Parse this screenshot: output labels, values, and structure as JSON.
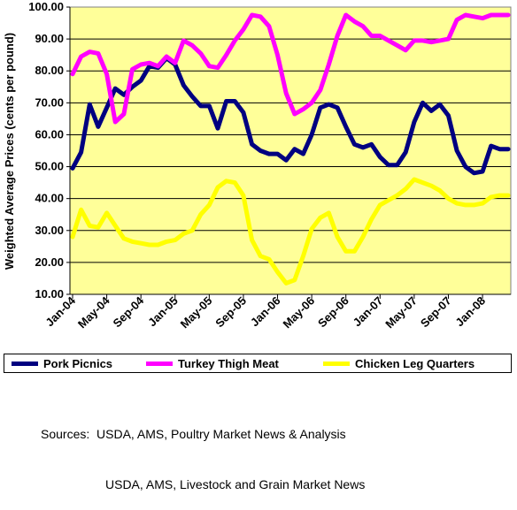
{
  "chart_data": {
    "type": "line",
    "title": "",
    "ylabel": "Weighted Average Prices (cents per pound)",
    "xlabel": "",
    "ylim": [
      10,
      100
    ],
    "yticks": [
      "10.00",
      "20.00",
      "30.00",
      "40.00",
      "50.00",
      "60.00",
      "70.00",
      "80.00",
      "90.00",
      "100.00"
    ],
    "xticks": [
      "Jan-04",
      "May-04",
      "Sep-04",
      "Jan-05",
      "May-05",
      "Sep-05",
      "Jan-06",
      "May-06",
      "Sep-06",
      "Jan-07",
      "May-07",
      "Sep-07",
      "Jan-08"
    ],
    "x": [
      "Jan-04",
      "Feb-04",
      "Mar-04",
      "Apr-04",
      "May-04",
      "Jun-04",
      "Jul-04",
      "Aug-04",
      "Sep-04",
      "Oct-04",
      "Nov-04",
      "Dec-04",
      "Jan-05",
      "Feb-05",
      "Mar-05",
      "Apr-05",
      "May-05",
      "Jun-05",
      "Jul-05",
      "Aug-05",
      "Sep-05",
      "Oct-05",
      "Nov-05",
      "Dec-05",
      "Jan-06",
      "Feb-06",
      "Mar-06",
      "Apr-06",
      "May-06",
      "Jun-06",
      "Jul-06",
      "Aug-06",
      "Sep-06",
      "Oct-06",
      "Nov-06",
      "Dec-06",
      "Jan-07",
      "Feb-07",
      "Mar-07",
      "Apr-07",
      "May-07",
      "Jun-07",
      "Jul-07",
      "Aug-07",
      "Sep-07",
      "Oct-07",
      "Nov-07",
      "Dec-07",
      "Jan-08",
      "Feb-08",
      "Mar-08",
      "Apr-08"
    ],
    "grid": true,
    "legend_position": "bottom",
    "plot_background": "#ffff99",
    "series": [
      {
        "name": "Pork Picnics",
        "color": "#000080",
        "values": [
          49.5,
          54.5,
          69.5,
          62.5,
          68.5,
          74.5,
          72.5,
          75,
          77,
          81.5,
          81,
          84,
          82,
          75.5,
          72,
          69,
          69,
          62,
          70.5,
          70.5,
          67,
          57,
          55,
          54,
          54,
          52,
          55.5,
          54,
          60,
          68.5,
          69.5,
          68.5,
          62.5,
          57,
          56,
          57,
          53,
          50.5,
          50.5,
          54.5,
          64,
          70,
          67.5,
          69.5,
          66,
          55,
          50,
          48,
          48.5,
          56.5,
          55.5,
          55.5
        ]
      },
      {
        "name": "Turkey Thigh Meat",
        "color": "#ff00ff",
        "values": [
          79,
          84.5,
          86,
          85.5,
          79,
          64,
          66.5,
          80.5,
          82,
          82.5,
          81.5,
          84.5,
          82.5,
          89.5,
          88,
          85.5,
          81.5,
          81,
          85,
          89.5,
          93,
          97.5,
          97,
          94,
          85,
          73,
          66.5,
          68,
          70,
          74,
          82,
          91,
          97.5,
          95.5,
          94,
          91,
          91,
          89.5,
          88,
          86.5,
          89.5,
          89.5,
          89,
          89.5,
          90,
          96,
          97.5,
          97,
          96.5,
          97.5,
          97.5,
          97.5
        ]
      },
      {
        "name": "Chicken Leg Quarters",
        "color": "#ffff00",
        "values": [
          28,
          36.5,
          31.5,
          31,
          35.5,
          31.5,
          27.5,
          26.5,
          26,
          25.5,
          25.5,
          26.5,
          27,
          29,
          30,
          35,
          38,
          43.5,
          45.5,
          45,
          41,
          27,
          22,
          21,
          17,
          13.5,
          14.5,
          22,
          30.5,
          34,
          35.5,
          28,
          23.5,
          23.5,
          28,
          33.5,
          38,
          39.5,
          41,
          43,
          46,
          45,
          44,
          42.5,
          40,
          38.5,
          38,
          38,
          38.5,
          40.5,
          41,
          41
        ]
      }
    ]
  },
  "legend": {
    "items": [
      {
        "label": "Pork Picnics",
        "color": "#000080"
      },
      {
        "label": "Turkey Thigh Meat",
        "color": "#ff00ff"
      },
      {
        "label": "Chicken Leg Quarters",
        "color": "#ffff00"
      }
    ]
  },
  "sources": {
    "line1": "Sources:  USDA, AMS, Poultry Market News & Analysis",
    "line2": "USDA, AMS, Livestock and Grain Market News"
  }
}
